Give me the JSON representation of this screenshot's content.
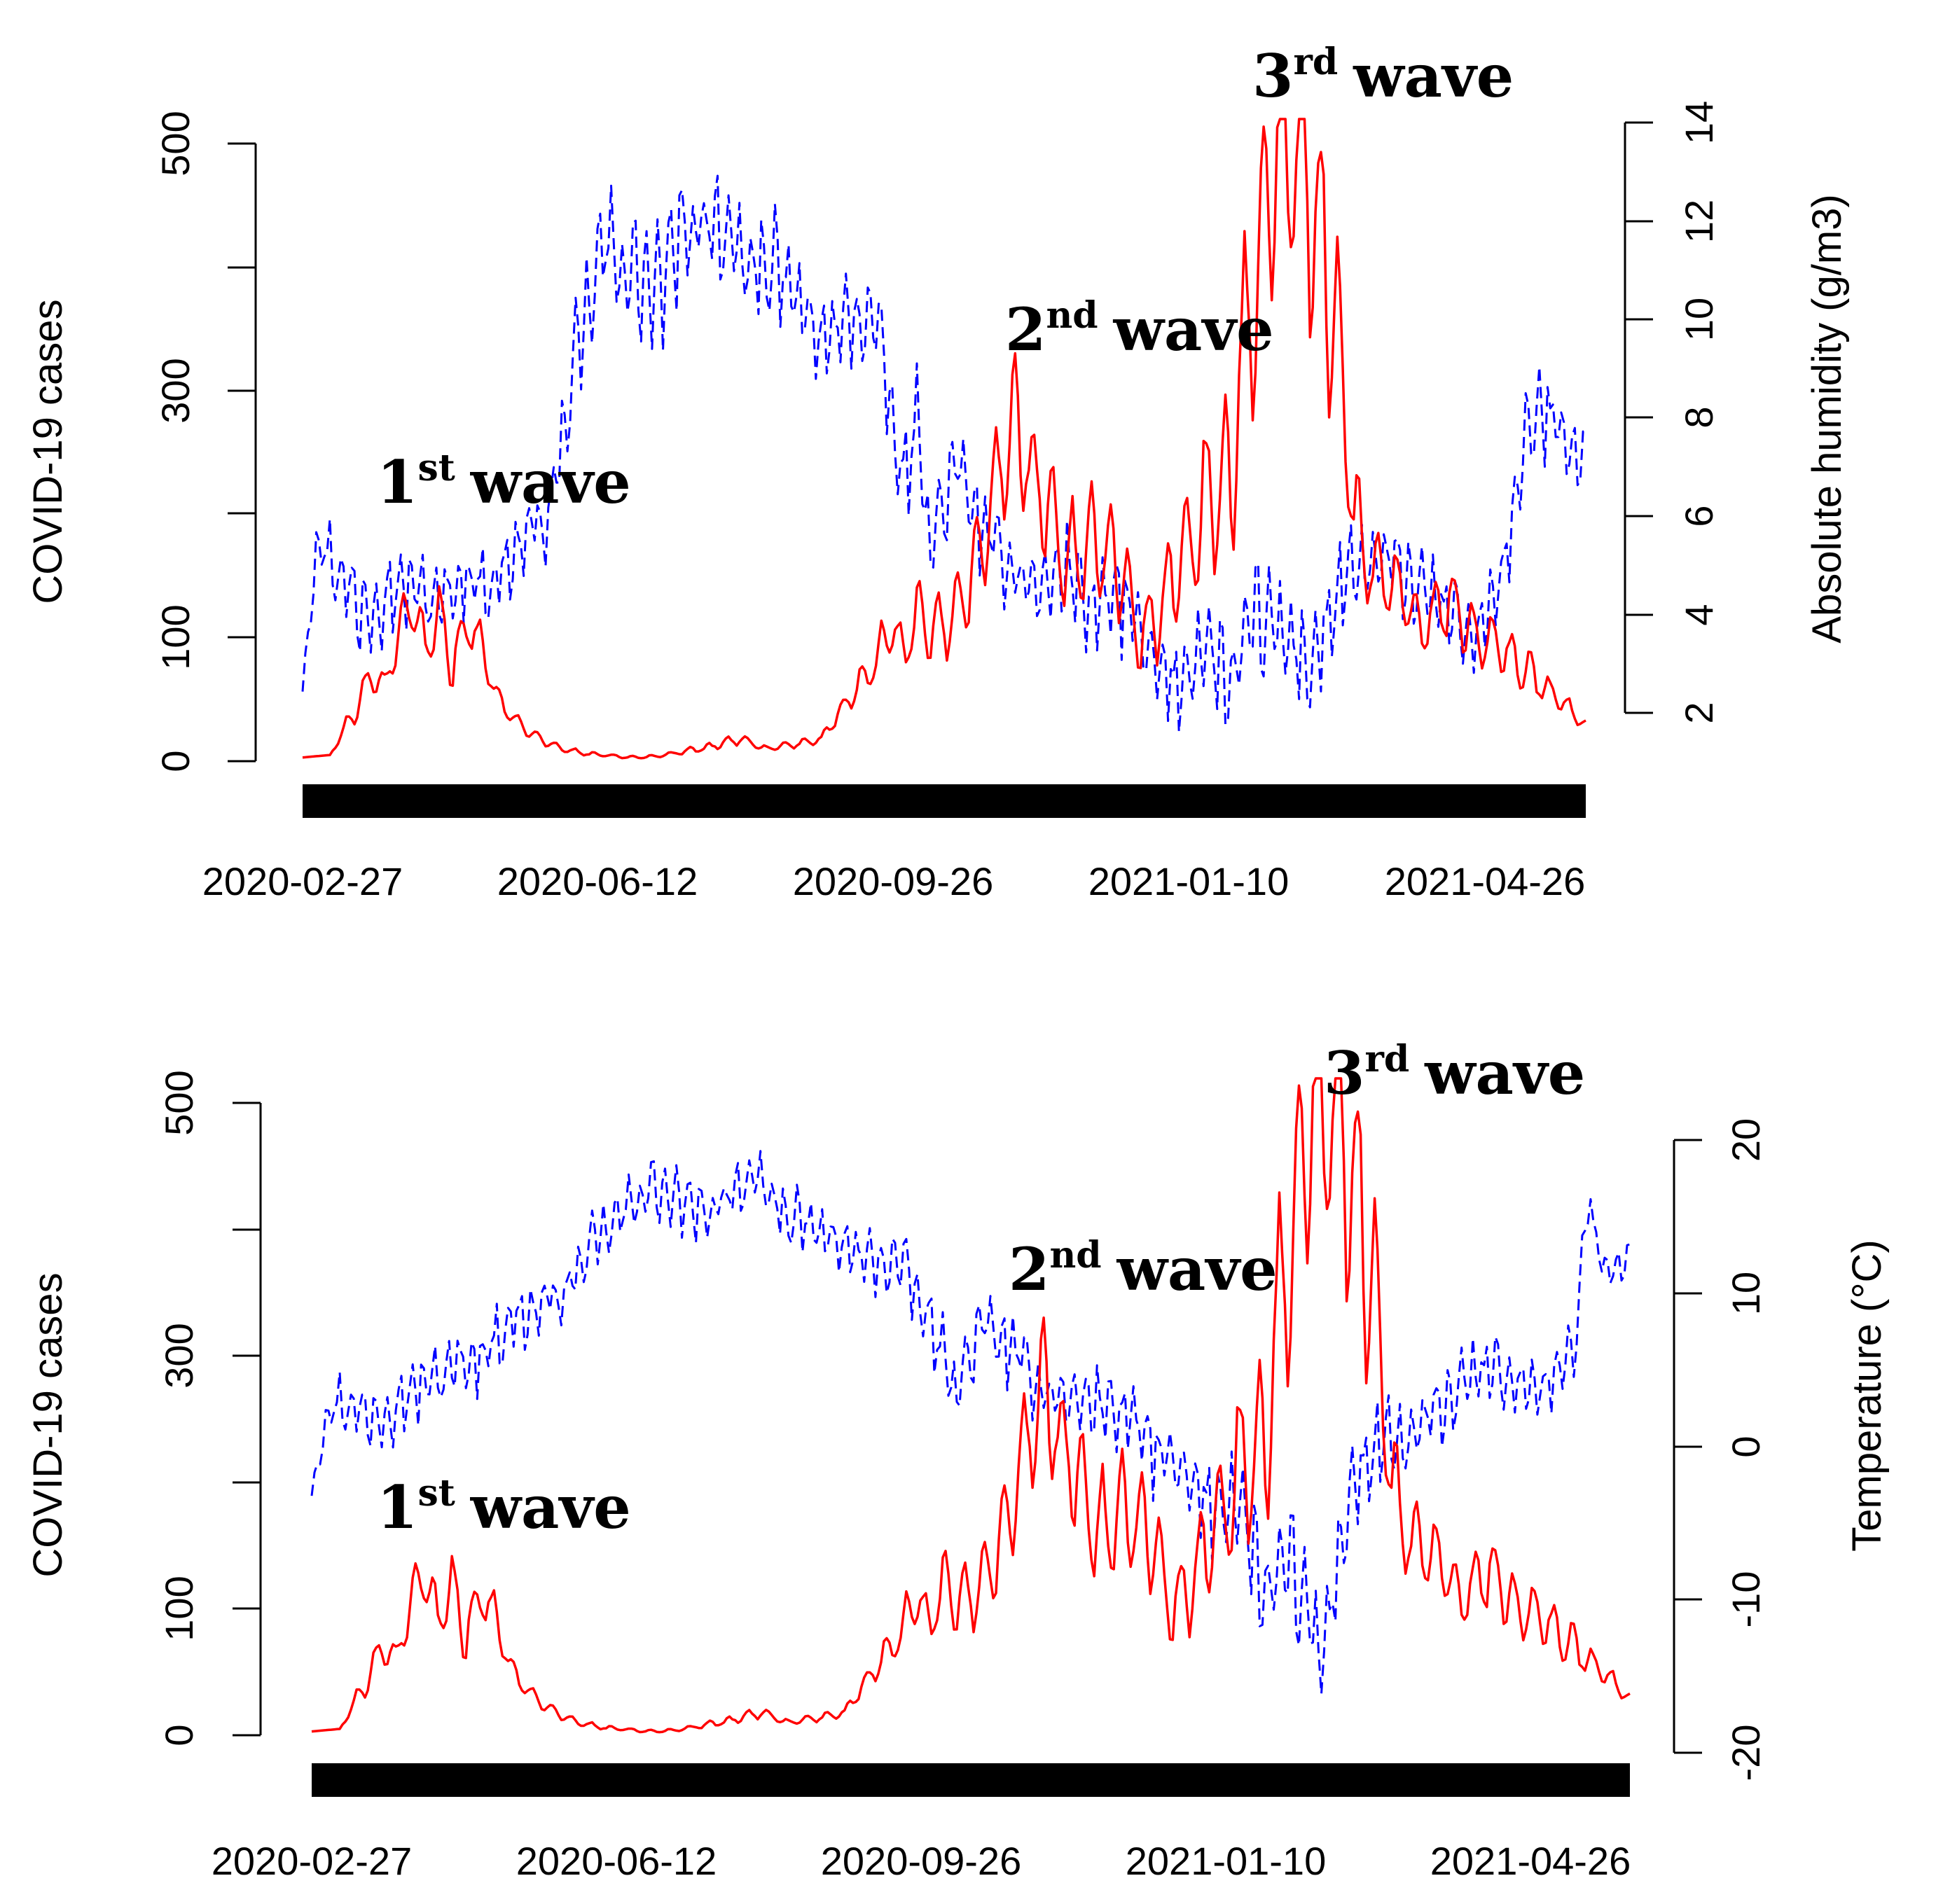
{
  "colors": {
    "cases": "#ff0000",
    "humidity": "#0000ff",
    "temperature": "#0000ff",
    "axis": "#000000"
  },
  "chart_data": [
    {
      "type": "line",
      "id": "humidity",
      "x_ticks": [
        "2020-02-27",
        "2020-06-12",
        "2020-09-26",
        "2021-01-10",
        "2021-04-26"
      ],
      "ylabel_left": "COVID-19 cases",
      "ylabel_right": "Absolute humidity (g/m3)",
      "yticks_left": [
        "0",
        "100",
        "300",
        "500"
      ],
      "yticks_right": [
        "2",
        "4",
        "6",
        "8",
        "10",
        "12",
        "14"
      ],
      "ylim_left": [
        0,
        500
      ],
      "ylim_right": [
        2,
        14
      ],
      "annotations": [
        {
          "num": "1",
          "sup": "st",
          "word": "wave"
        },
        {
          "num": "2",
          "sup": "nd",
          "word": "wave"
        },
        {
          "num": "3",
          "sup": "rd",
          "word": "wave"
        }
      ],
      "series": [
        {
          "name": "COVID-19 cases",
          "axis": "left",
          "style": "solid",
          "x_days": [
            0,
            10,
            20,
            25,
            30,
            35,
            40,
            45,
            50,
            55,
            60,
            65,
            70,
            75,
            80,
            85,
            90,
            95,
            100,
            105,
            110,
            120,
            130,
            140,
            150,
            160,
            170,
            180,
            190,
            200,
            210,
            215,
            220,
            225,
            230,
            240,
            250,
            260,
            270,
            280,
            290,
            300,
            305,
            310,
            320,
            330,
            340,
            345,
            350,
            360,
            370,
            380,
            385,
            390,
            400,
            410,
            420,
            430,
            440,
            450,
            460,
            470
          ],
          "values": [
            3,
            5,
            45,
            70,
            60,
            100,
            130,
            90,
            120,
            80,
            110,
            100,
            60,
            40,
            30,
            20,
            15,
            10,
            8,
            6,
            5,
            3,
            4,
            8,
            12,
            18,
            10,
            14,
            18,
            50,
            80,
            110,
            90,
            120,
            100,
            120,
            180,
            280,
            220,
            160,
            180,
            150,
            110,
            100,
            150,
            210,
            230,
            350,
            420,
            520,
            460,
            330,
            200,
            160,
            140,
            110,
            130,
            100,
            90,
            70,
            50,
            30
          ],
          "amplitude": [
            0,
            0,
            10,
            12,
            10,
            22,
            22,
            22,
            22,
            22,
            15,
            15,
            8,
            6,
            5,
            4,
            3,
            2,
            2,
            2,
            1,
            1,
            1,
            2,
            3,
            4,
            2,
            3,
            3,
            10,
            15,
            22,
            22,
            25,
            25,
            28,
            40,
            45,
            45,
            40,
            40,
            40,
            35,
            35,
            40,
            55,
            65,
            80,
            100,
            100,
            100,
            80,
            40,
            30,
            25,
            25,
            25,
            20,
            20,
            15,
            10,
            5
          ]
        },
        {
          "name": "Absolute humidity",
          "axis": "right",
          "style": "dashed",
          "x_days": [
            0,
            5,
            10,
            20,
            30,
            40,
            50,
            60,
            70,
            80,
            90,
            100,
            110,
            120,
            130,
            140,
            150,
            160,
            170,
            180,
            190,
            200,
            210,
            220,
            225,
            230,
            240,
            250,
            260,
            270,
            280,
            290,
            300,
            310,
            320,
            330,
            340,
            350,
            360,
            370,
            380,
            390,
            400,
            410,
            420,
            430,
            440,
            450,
            460,
            470
          ],
          "values": [
            2.5,
            5.5,
            5.2,
            4.2,
            4.5,
            4.6,
            4.2,
            4.8,
            4.6,
            5.5,
            6.0,
            9.0,
            11.5,
            11.0,
            10.5,
            11.8,
            12.2,
            11.0,
            11.2,
            10.5,
            9.5,
            10.0,
            10.0,
            6.5,
            8.0,
            5.5,
            7.0,
            5.5,
            5.0,
            4.5,
            5.0,
            4.0,
            4.5,
            3.0,
            2.5,
            3.5,
            2.5,
            4.0,
            3.5,
            3.0,
            4.5,
            5.0,
            5.0,
            4.5,
            4.0,
            3.5,
            5.0,
            8.0,
            8.0,
            7.0
          ],
          "amplitude": [
            0.3,
            0.7,
            0.8,
            1.2,
            1.0,
            0.9,
            0.9,
            0.8,
            0.8,
            0.8,
            1.0,
            1.2,
            1.3,
            1.2,
            1.3,
            1.2,
            1.3,
            1.2,
            1.2,
            1.0,
            1.0,
            0.9,
            0.8,
            1.2,
            1.0,
            1.0,
            1.0,
            0.9,
            0.9,
            1.0,
            1.0,
            1.0,
            1.2,
            1.2,
            1.0,
            1.0,
            1.2,
            1.2,
            1.3,
            1.2,
            1.0,
            1.0,
            0.9,
            0.9,
            0.8,
            0.8,
            0.8,
            1.0,
            1.0,
            0.8
          ]
        }
      ]
    },
    {
      "type": "line",
      "id": "temperature",
      "x_ticks": [
        "2020-02-27",
        "2020-06-12",
        "2020-09-26",
        "2021-01-10",
        "2021-04-26"
      ],
      "ylabel_left": "COVID-19 cases",
      "ylabel_right": "Temperature (°C)",
      "yticks_left": [
        "0",
        "100",
        "300",
        "500"
      ],
      "yticks_right": [
        "-20",
        "-10",
        "0",
        "10",
        "20"
      ],
      "ylim_left": [
        0,
        500
      ],
      "ylim_right": [
        -20,
        20
      ],
      "annotations": [
        {
          "num": "1",
          "sup": "st",
          "word": "wave"
        },
        {
          "num": "2",
          "sup": "nd",
          "word": "wave"
        },
        {
          "num": "3",
          "sup": "rd",
          "word": "wave"
        }
      ],
      "series": [
        {
          "name": "COVID-19 cases",
          "axis": "left",
          "style": "solid",
          "x_days": [
            0,
            10,
            20,
            25,
            30,
            35,
            40,
            45,
            50,
            55,
            60,
            65,
            70,
            75,
            80,
            85,
            90,
            95,
            100,
            105,
            110,
            120,
            130,
            140,
            150,
            160,
            170,
            180,
            190,
            200,
            210,
            215,
            220,
            225,
            230,
            240,
            250,
            260,
            270,
            280,
            290,
            300,
            305,
            310,
            320,
            330,
            340,
            345,
            350,
            360,
            370,
            380,
            385,
            390,
            400,
            410,
            420,
            430,
            440,
            450,
            460,
            470
          ],
          "values": [
            3,
            5,
            45,
            70,
            60,
            100,
            130,
            90,
            120,
            80,
            110,
            100,
            60,
            40,
            30,
            20,
            15,
            10,
            8,
            6,
            5,
            3,
            4,
            8,
            12,
            18,
            10,
            14,
            18,
            50,
            80,
            110,
            90,
            120,
            100,
            120,
            180,
            280,
            220,
            160,
            180,
            150,
            110,
            100,
            150,
            210,
            230,
            350,
            420,
            520,
            460,
            330,
            200,
            160,
            140,
            110,
            130,
            100,
            90,
            70,
            50,
            30
          ],
          "amplitude": [
            0,
            0,
            10,
            12,
            10,
            22,
            22,
            22,
            22,
            22,
            15,
            15,
            8,
            6,
            5,
            4,
            3,
            2,
            2,
            2,
            1,
            1,
            1,
            2,
            3,
            4,
            2,
            3,
            3,
            10,
            15,
            22,
            22,
            25,
            25,
            28,
            40,
            45,
            45,
            40,
            40,
            40,
            35,
            35,
            40,
            55,
            65,
            80,
            100,
            100,
            100,
            80,
            40,
            30,
            25,
            25,
            25,
            20,
            20,
            15,
            10,
            5
          ]
        },
        {
          "name": "Temperature",
          "axis": "right",
          "style": "dashed",
          "x_days": [
            0,
            5,
            10,
            20,
            30,
            40,
            50,
            60,
            70,
            80,
            90,
            100,
            110,
            120,
            130,
            140,
            150,
            160,
            170,
            180,
            190,
            200,
            210,
            220,
            230,
            240,
            250,
            260,
            270,
            280,
            290,
            300,
            310,
            320,
            330,
            340,
            350,
            360,
            370,
            380,
            390,
            400,
            410,
            420,
            430,
            440,
            450,
            455,
            460,
            470
          ],
          "values": [
            -3,
            2,
            3,
            2,
            3,
            4,
            5,
            6,
            8,
            9,
            10,
            13,
            15,
            17,
            16,
            15,
            17,
            17,
            15,
            14,
            13,
            12,
            12,
            8,
            4,
            8,
            6,
            4,
            3,
            3,
            2,
            0,
            -2,
            -4,
            -3,
            -10,
            -8,
            -14,
            -3,
            0,
            0,
            2,
            4,
            5,
            4,
            4,
            6,
            16,
            12,
            12
          ],
          "amplitude": [
            1,
            1.5,
            2,
            2.5,
            2.5,
            2.5,
            2.5,
            2.5,
            2.5,
            2,
            2,
            2,
            2,
            2,
            2,
            2,
            2,
            2,
            2,
            2,
            2,
            2,
            2,
            2.5,
            2.5,
            2.5,
            2.5,
            2.5,
            2.5,
            2.5,
            2.5,
            3,
            3,
            3.5,
            3.5,
            4,
            4,
            4,
            3.5,
            3,
            3,
            2.5,
            2.5,
            2.5,
            2,
            2,
            2,
            1.5,
            1.5,
            1.5
          ]
        }
      ]
    }
  ]
}
